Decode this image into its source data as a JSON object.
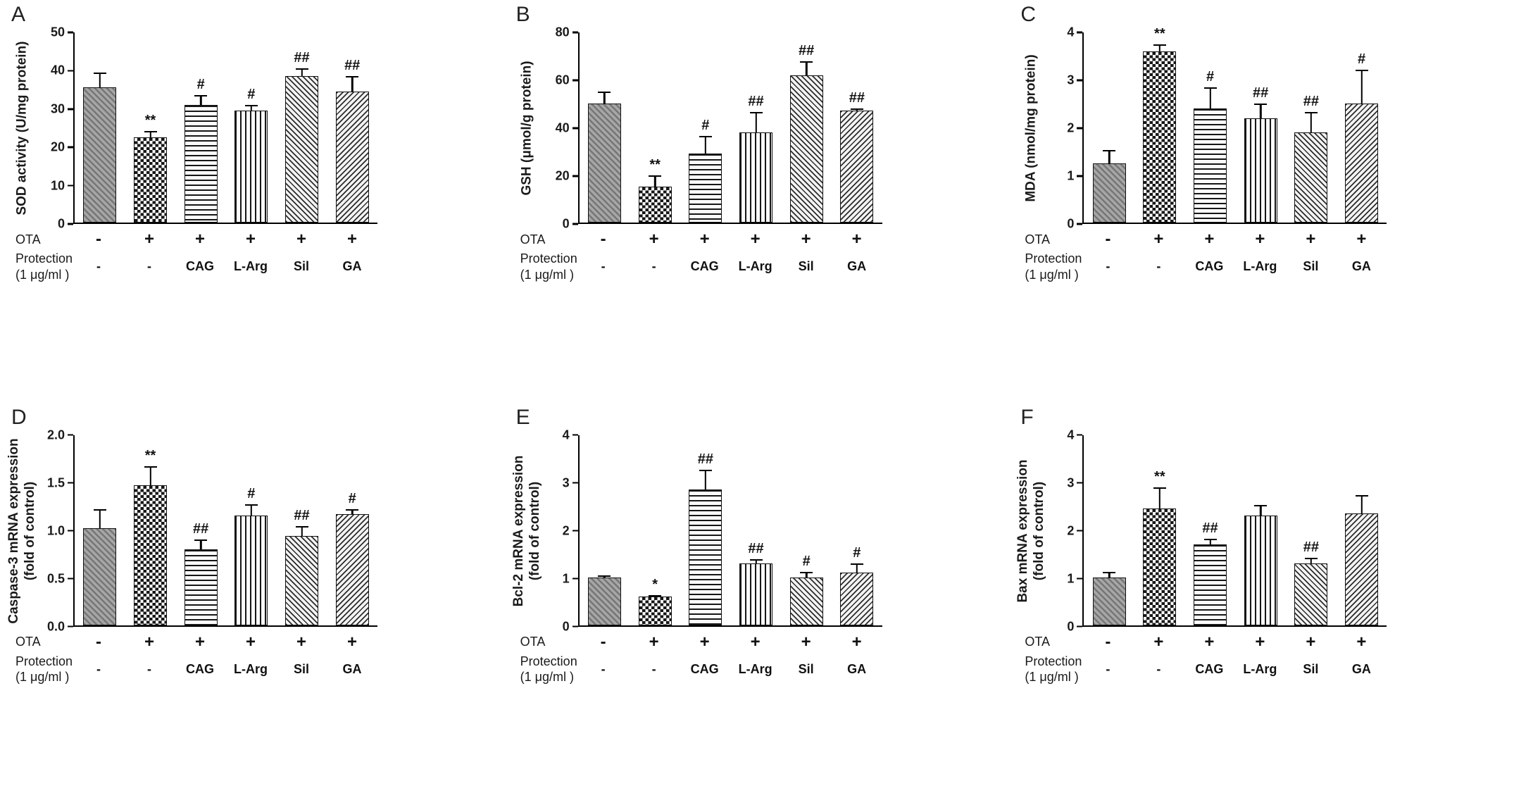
{
  "figure": {
    "background": "#ffffff",
    "text_color": "#111111",
    "ota_row_label": "OTA",
    "protection_row_label_lines": [
      "Protection",
      "(1 μg/ml )"
    ],
    "pattern_legend": {
      "control": "gray-diagonal-hatch",
      "ota": "checkerboard",
      "cag": "horizontal-lines",
      "l_arg": "vertical-lines",
      "sil": "diagonal-lines",
      "ga": "reverse-diagonal-lines"
    }
  },
  "chart_data": [
    {
      "type": "bar",
      "panel": "A",
      "ylabel_lines": [
        "SOD activity (U/mg protein)"
      ],
      "ylim": [
        0,
        50
      ],
      "yticks": [
        0,
        10,
        20,
        30,
        40,
        50
      ],
      "ytick_labels": [
        "0",
        "10",
        "20",
        "30",
        "40",
        "50"
      ],
      "ota": [
        "-",
        "+",
        "+",
        "+",
        "+",
        "+"
      ],
      "protection": [
        "-",
        "-",
        "CAG",
        "L-Arg",
        "Sil",
        "GA"
      ],
      "values": [
        35.5,
        22.5,
        31,
        29.5,
        38.5,
        34.5
      ],
      "errors": [
        4,
        1.5,
        2.5,
        1.5,
        2,
        4
      ],
      "annotations": [
        "",
        "**",
        "#",
        "#",
        "##",
        "##"
      ],
      "patterns": [
        "diag-gray",
        "checker",
        "hlines",
        "vlines",
        "diag-fine",
        "diag-back"
      ]
    },
    {
      "type": "bar",
      "panel": "B",
      "ylabel_lines": [
        "GSH (μmol/g protein)"
      ],
      "ylim": [
        0,
        80
      ],
      "yticks": [
        0,
        20,
        40,
        60,
        80
      ],
      "ytick_labels": [
        "0",
        "20",
        "40",
        "60",
        "80"
      ],
      "ota": [
        "-",
        "+",
        "+",
        "+",
        "+",
        "+"
      ],
      "protection": [
        "-",
        "-",
        "CAG",
        "L-Arg",
        "Sil",
        "GA"
      ],
      "values": [
        50,
        15,
        29,
        38,
        62,
        47
      ],
      "errors": [
        5,
        5,
        7.5,
        8.5,
        6,
        1
      ],
      "annotations": [
        "",
        "**",
        "#",
        "##",
        "##",
        "##"
      ],
      "patterns": [
        "diag-gray",
        "checker",
        "hlines",
        "vlines",
        "diag-fine",
        "diag-back"
      ]
    },
    {
      "type": "bar",
      "panel": "C",
      "ylabel_lines": [
        "MDA (nmol/mg protein)"
      ],
      "ylim": [
        0,
        4
      ],
      "yticks": [
        0,
        1,
        2,
        3,
        4
      ],
      "ytick_labels": [
        "0",
        "1",
        "2",
        "3",
        "4"
      ],
      "ota": [
        "-",
        "+",
        "+",
        "+",
        "+",
        "+"
      ],
      "protection": [
        "-",
        "-",
        "CAG",
        "L-Arg",
        "Sil",
        "GA"
      ],
      "values": [
        1.25,
        3.6,
        2.4,
        2.2,
        1.9,
        2.5
      ],
      "errors": [
        0.28,
        0.15,
        0.45,
        0.3,
        0.42,
        0.72
      ],
      "annotations": [
        "",
        "**",
        "#",
        "##",
        "##",
        "#"
      ],
      "patterns": [
        "diag-gray",
        "checker",
        "hlines",
        "vlines",
        "diag-fine",
        "diag-back"
      ]
    },
    {
      "type": "bar",
      "panel": "D",
      "ylabel_lines": [
        "Caspase-3 mRNA expression",
        "(fold of control)"
      ],
      "ylim": [
        0,
        2
      ],
      "yticks": [
        0,
        0.5,
        1,
        1.5,
        2
      ],
      "ytick_labels": [
        "0.0",
        "0.5",
        "1.0",
        "1.5",
        "2.0"
      ],
      "ota": [
        "-",
        "+",
        "+",
        "+",
        "+",
        "+"
      ],
      "protection": [
        "-",
        "-",
        "CAG",
        "L-Arg",
        "Sil",
        "GA"
      ],
      "values": [
        1.02,
        1.47,
        0.8,
        1.15,
        0.94,
        1.17
      ],
      "errors": [
        0.2,
        0.2,
        0.1,
        0.12,
        0.1,
        0.05
      ],
      "annotations": [
        "",
        "**",
        "##",
        "#",
        "##",
        "#"
      ],
      "patterns": [
        "diag-gray",
        "checker",
        "hlines",
        "vlines",
        "diag-fine",
        "diag-back"
      ]
    },
    {
      "type": "bar",
      "panel": "E",
      "ylabel_lines": [
        "Bcl-2 mRNA expression",
        "(fold of control)"
      ],
      "ylim": [
        0,
        4
      ],
      "yticks": [
        0,
        1,
        2,
        3,
        4
      ],
      "ytick_labels": [
        "0",
        "1",
        "2",
        "3",
        "4"
      ],
      "ota": [
        "-",
        "+",
        "+",
        "+",
        "+",
        "+"
      ],
      "protection": [
        "-",
        "-",
        "CAG",
        "L-Arg",
        "Sil",
        "GA"
      ],
      "values": [
        1.0,
        0.6,
        2.85,
        1.3,
        1.0,
        1.1
      ],
      "errors": [
        0.05,
        0.03,
        0.42,
        0.08,
        0.12,
        0.2
      ],
      "annotations": [
        "",
        "*",
        "##",
        "##",
        "#",
        "#"
      ],
      "patterns": [
        "diag-gray",
        "checker",
        "hlines",
        "vlines",
        "diag-fine",
        "diag-back"
      ]
    },
    {
      "type": "bar",
      "panel": "F",
      "ylabel_lines": [
        "Bax mRNA expression",
        "(fold of control)"
      ],
      "ylim": [
        0,
        4
      ],
      "yticks": [
        0,
        1,
        2,
        3,
        4
      ],
      "ytick_labels": [
        "0",
        "1",
        "2",
        "3",
        "4"
      ],
      "ota": [
        "-",
        "+",
        "+",
        "+",
        "+",
        "+"
      ],
      "protection": [
        "-",
        "-",
        "CAG",
        "L-Arg",
        "Sil",
        "GA"
      ],
      "values": [
        1.0,
        2.45,
        1.7,
        2.3,
        1.3,
        2.35
      ],
      "errors": [
        0.12,
        0.45,
        0.12,
        0.22,
        0.12,
        0.38
      ],
      "annotations": [
        "",
        "**",
        "##",
        "",
        "##",
        ""
      ],
      "patterns": [
        "diag-gray",
        "checker",
        "hlines",
        "vlines",
        "diag-fine",
        "diag-back"
      ]
    }
  ]
}
